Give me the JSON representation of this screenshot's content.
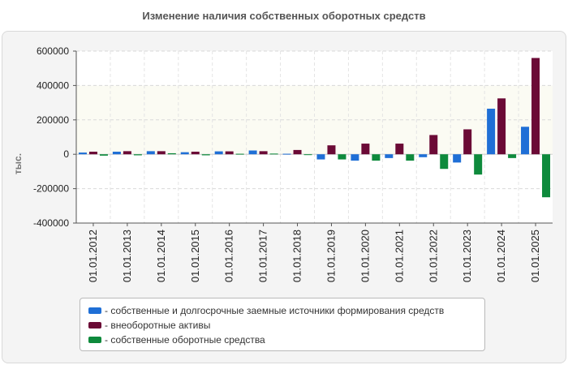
{
  "title": "Изменение наличия собственных оборотных средств",
  "chart_data": {
    "type": "bar",
    "title": "Изменение наличия собственных оборотных средств",
    "ylabel": "тыс.",
    "xlabel": "",
    "ylim": [
      -400000,
      600000
    ],
    "yticks": [
      600000,
      400000,
      200000,
      0,
      -200000,
      -400000
    ],
    "ytick_labels": [
      "600000",
      "400000",
      "200000",
      "0",
      "-200000",
      "-400000"
    ],
    "grid": true,
    "legend_position": "bottom",
    "categories": [
      "01.01.2012",
      "01.01.2013",
      "01.01.2014",
      "01.01.2015",
      "01.01.2016",
      "01.01.2017",
      "01.01.2018",
      "01.01.2019",
      "01.01.2020",
      "01.01.2021",
      "01.01.2022",
      "01.01.2023",
      "01.01.2024",
      "01.01.2025"
    ],
    "series": [
      {
        "name": "- собственные и долгосрочные заемные источники формирования средств",
        "color": "#1f6fd6",
        "values": [
          10000,
          15000,
          18000,
          12000,
          17000,
          22000,
          3000,
          -30000,
          -37000,
          -22000,
          -17000,
          -48000,
          265000,
          160000
        ]
      },
      {
        "name": "- внеоборотные активы",
        "color": "#6b0a36",
        "values": [
          15000,
          18000,
          18000,
          15000,
          17000,
          18000,
          25000,
          52000,
          62000,
          62000,
          112000,
          145000,
          325000,
          560000
        ]
      },
      {
        "name": "- собственные оборотные средства",
        "color": "#0e8a3c",
        "values": [
          -8000,
          -6000,
          6000,
          -6000,
          3000,
          4000,
          -3000,
          -30000,
          -37000,
          -37000,
          -85000,
          -118000,
          -22000,
          -250000
        ]
      }
    ]
  }
}
